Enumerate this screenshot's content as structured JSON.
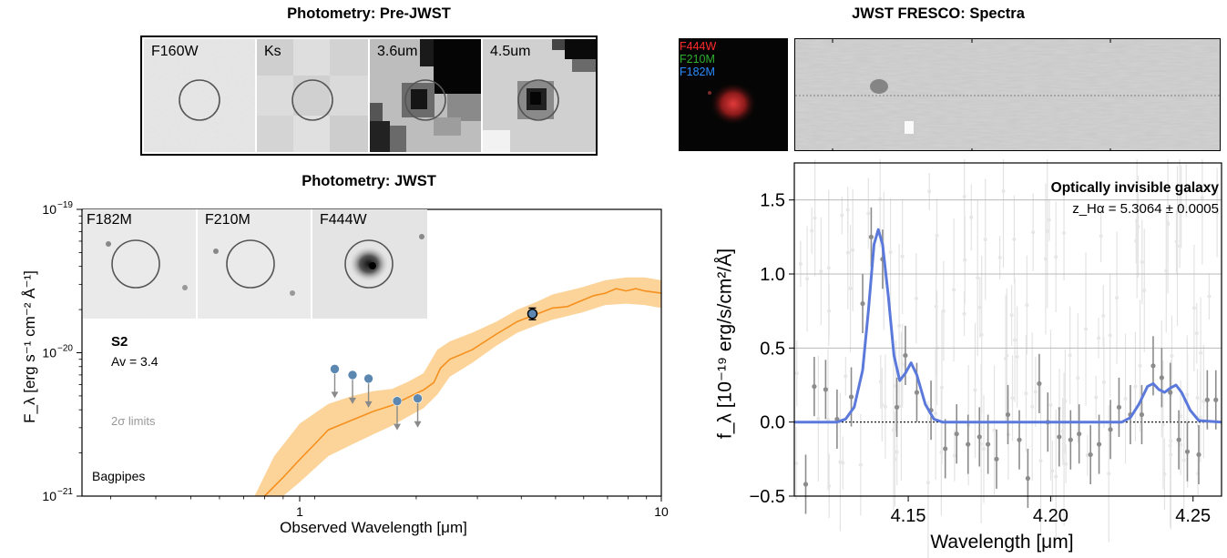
{
  "pre_jwst": {
    "title": "Photometry: Pre-JWST",
    "stamps": [
      {
        "label": "F160W"
      },
      {
        "label": "Ks"
      },
      {
        "label": "3.6um"
      },
      {
        "label": "4.5um"
      }
    ]
  },
  "jwst_phot": {
    "title": "Photometry: JWST",
    "stamps": [
      {
        "label": "F182M"
      },
      {
        "label": "F210M"
      },
      {
        "label": "F444W"
      }
    ]
  },
  "fresco": {
    "title": "JWST FRESCO:  Spectra",
    "rgb_labels": [
      {
        "text": "F444W",
        "color": "#ff2a2a"
      },
      {
        "text": "F210M",
        "color": "#2fae2f"
      },
      {
        "text": "F182M",
        "color": "#2a8cff"
      }
    ]
  },
  "colors": {
    "model_line": "#f5901e",
    "model_band": "#fcd49a",
    "detection_marker": "#5b87b0",
    "limit_arrow": "#8a8a8a",
    "spectrum_fit": "#5b79db",
    "data_points": "#8c8c8c"
  },
  "chart_data": [
    {
      "type": "scatter",
      "title": "Photometry: JWST",
      "xlabel": "Observed Wavelength [μm]",
      "ylabel": "F_λ [erg s⁻¹ cm⁻² Å⁻¹]",
      "xscale": "log",
      "yscale": "log",
      "xlim": [
        0.25,
        10
      ],
      "ylim": [
        1e-21,
        1e-19
      ],
      "x_ticks": [
        {
          "value": 1,
          "label": "1"
        },
        {
          "value": 10,
          "label": "10"
        }
      ],
      "y_ticks": [
        {
          "value": 1e-21,
          "label": "10",
          "exp": "−21"
        },
        {
          "value": 1e-20,
          "label": "10",
          "exp": "−20"
        },
        {
          "value": 1e-19,
          "label": "10",
          "exp": "−19"
        }
      ],
      "annotations": {
        "object": "S2",
        "av": "Av = 3.4",
        "limits": "2σ limits",
        "code": "Bagpipes"
      },
      "upper_limits": [
        {
          "x": 1.25,
          "y": 7.7e-21
        },
        {
          "x": 1.4,
          "y": 7e-21
        },
        {
          "x": 1.55,
          "y": 6.6e-21
        },
        {
          "x": 1.86,
          "y": 4.6e-21
        },
        {
          "x": 2.12,
          "y": 4.8e-21
        }
      ],
      "detection": {
        "x": 4.4,
        "y": 1.87e-20,
        "yerr": [
          1.7e-20,
          2.05e-20
        ]
      },
      "model_median": [
        [
          0.8,
          1e-21
        ],
        [
          0.9,
          1.35e-21
        ],
        [
          1.0,
          1.8e-21
        ],
        [
          1.1,
          2.3e-21
        ],
        [
          1.2,
          2.9e-21
        ],
        [
          1.4,
          3.4e-21
        ],
        [
          1.6,
          3.9e-21
        ],
        [
          1.8,
          4.3e-21
        ],
        [
          2.0,
          4.9e-21
        ],
        [
          2.2,
          5.5e-21
        ],
        [
          2.35,
          6.2e-21
        ],
        [
          2.45,
          7.8e-21
        ],
        [
          2.6,
          9e-21
        ],
        [
          3.0,
          1.05e-20
        ],
        [
          3.5,
          1.35e-20
        ],
        [
          4.0,
          1.65e-20
        ],
        [
          4.5,
          1.85e-20
        ],
        [
          5.0,
          2.05e-20
        ],
        [
          5.5,
          2.1e-20
        ],
        [
          6.0,
          2.3e-20
        ],
        [
          6.5,
          2.5e-20
        ],
        [
          7.0,
          2.6e-20
        ],
        [
          7.5,
          2.8e-20
        ],
        [
          8.0,
          2.7e-20
        ],
        [
          8.5,
          2.8e-20
        ],
        [
          9.0,
          2.7e-20
        ],
        [
          10.0,
          2.6e-20
        ]
      ],
      "model_low": [
        [
          0.9,
          1e-21
        ],
        [
          1.0,
          1.25e-21
        ],
        [
          1.2,
          1.9e-21
        ],
        [
          1.4,
          2.3e-21
        ],
        [
          1.6,
          2.7e-21
        ],
        [
          1.8,
          3.1e-21
        ],
        [
          2.0,
          3.6e-21
        ],
        [
          2.2,
          4.1e-21
        ],
        [
          2.4,
          5.1e-21
        ],
        [
          2.6,
          6.8e-21
        ],
        [
          3.0,
          8.5e-21
        ],
        [
          3.5,
          1.12e-20
        ],
        [
          4.0,
          1.38e-20
        ],
        [
          4.5,
          1.55e-20
        ],
        [
          5.0,
          1.7e-20
        ],
        [
          6.0,
          1.9e-20
        ],
        [
          7.0,
          2.15e-20
        ],
        [
          8.0,
          2.2e-20
        ],
        [
          9.0,
          2.15e-20
        ],
        [
          10.0,
          2.05e-20
        ]
      ],
      "model_high": [
        [
          0.75,
          1e-21
        ],
        [
          0.85,
          1.9e-21
        ],
        [
          1.0,
          3.2e-21
        ],
        [
          1.2,
          4.4e-21
        ],
        [
          1.4,
          5e-21
        ],
        [
          1.6,
          5.4e-21
        ],
        [
          1.8,
          5.6e-21
        ],
        [
          2.0,
          6.3e-21
        ],
        [
          2.2,
          7.2e-21
        ],
        [
          2.4,
          1.05e-20
        ],
        [
          2.6,
          1.2e-20
        ],
        [
          3.0,
          1.38e-20
        ],
        [
          3.5,
          1.65e-20
        ],
        [
          4.0,
          2e-20
        ],
        [
          4.5,
          2.25e-20
        ],
        [
          5.0,
          2.55e-20
        ],
        [
          6.0,
          2.85e-20
        ],
        [
          7.0,
          3.2e-20
        ],
        [
          8.0,
          3.35e-20
        ],
        [
          9.0,
          3.35e-20
        ],
        [
          10.0,
          3.2e-20
        ]
      ]
    },
    {
      "type": "line",
      "xlabel": "Wavelength [μm]",
      "ylabel": "f_λ [10⁻¹⁹ erg/s/cm²/Å]",
      "xlim": [
        4.11,
        4.26
      ],
      "ylim": [
        -0.5,
        1.75
      ],
      "x_ticks": [
        4.15,
        4.2,
        4.25
      ],
      "y_ticks": [
        -0.5,
        0.0,
        0.5,
        1.0,
        1.5
      ],
      "grid": true,
      "annotation_title": "Optically invisible galaxy",
      "annotation_redshift": "z_Hα = 5.3064 ± 0.0005",
      "fit": [
        [
          4.11,
          0.0
        ],
        [
          4.125,
          0.0
        ],
        [
          4.128,
          0.02
        ],
        [
          4.131,
          0.1
        ],
        [
          4.134,
          0.35
        ],
        [
          4.136,
          0.75
        ],
        [
          4.138,
          1.2
        ],
        [
          4.1395,
          1.3
        ],
        [
          4.141,
          1.2
        ],
        [
          4.143,
          0.85
        ],
        [
          4.145,
          0.45
        ],
        [
          4.147,
          0.28
        ],
        [
          4.149,
          0.33
        ],
        [
          4.151,
          0.4
        ],
        [
          4.153,
          0.32
        ],
        [
          4.156,
          0.12
        ],
        [
          4.159,
          0.02
        ],
        [
          4.162,
          0.0
        ],
        [
          4.225,
          0.0
        ],
        [
          4.228,
          0.03
        ],
        [
          4.231,
          0.12
        ],
        [
          4.234,
          0.24
        ],
        [
          4.236,
          0.26
        ],
        [
          4.238,
          0.22
        ],
        [
          4.24,
          0.2
        ],
        [
          4.242,
          0.23
        ],
        [
          4.244,
          0.25
        ],
        [
          4.246,
          0.2
        ],
        [
          4.249,
          0.08
        ],
        [
          4.252,
          0.01
        ],
        [
          4.26,
          0.0
        ]
      ],
      "points": [
        {
          "x": 4.114,
          "y": -0.42,
          "err": 0.2
        },
        {
          "x": 4.117,
          "y": 0.24,
          "err": 0.2
        },
        {
          "x": 4.121,
          "y": 0.22,
          "err": 0.2
        },
        {
          "x": 4.125,
          "y": 0.02,
          "err": 0.2
        },
        {
          "x": 4.13,
          "y": 0.17,
          "err": 0.2
        },
        {
          "x": 4.134,
          "y": 0.8,
          "err": 0.2
        },
        {
          "x": 4.137,
          "y": 1.25,
          "err": 0.2
        },
        {
          "x": 4.141,
          "y": 1.1,
          "err": 0.2
        },
        {
          "x": 4.146,
          "y": 0.1,
          "err": 0.2
        },
        {
          "x": 4.149,
          "y": 0.45,
          "err": 0.2
        },
        {
          "x": 4.153,
          "y": 0.2,
          "err": 0.2
        },
        {
          "x": 4.158,
          "y": 0.08,
          "err": 0.2
        },
        {
          "x": 4.163,
          "y": -0.18,
          "err": 0.2
        },
        {
          "x": 4.167,
          "y": -0.08,
          "err": 0.2
        },
        {
          "x": 4.171,
          "y": -0.15,
          "err": 0.2
        },
        {
          "x": 4.175,
          "y": -0.1,
          "err": 0.2
        },
        {
          "x": 4.178,
          "y": -0.15,
          "err": 0.2
        },
        {
          "x": 4.181,
          "y": -0.25,
          "err": 0.2
        },
        {
          "x": 4.185,
          "y": 0.05,
          "err": 0.2
        },
        {
          "x": 4.189,
          "y": -0.12,
          "err": 0.2
        },
        {
          "x": 4.192,
          "y": -0.38,
          "err": 0.2
        },
        {
          "x": 4.196,
          "y": 0.26,
          "err": 0.2
        },
        {
          "x": 4.199,
          "y": 0.0,
          "err": 0.2
        },
        {
          "x": 4.203,
          "y": -0.1,
          "err": 0.2
        },
        {
          "x": 4.207,
          "y": -0.12,
          "err": 0.2
        },
        {
          "x": 4.21,
          "y": -0.08,
          "err": 0.2
        },
        {
          "x": 4.214,
          "y": -0.22,
          "err": 0.2
        },
        {
          "x": 4.217,
          "y": -0.15,
          "err": 0.2
        },
        {
          "x": 4.221,
          "y": -0.05,
          "err": 0.2
        },
        {
          "x": 4.224,
          "y": 0.1,
          "err": 0.2
        },
        {
          "x": 4.228,
          "y": 0.05,
          "err": 0.2
        },
        {
          "x": 4.232,
          "y": 0.05,
          "err": 0.2
        },
        {
          "x": 4.236,
          "y": 0.38,
          "err": 0.2
        },
        {
          "x": 4.239,
          "y": 0.3,
          "err": 0.2
        },
        {
          "x": 4.242,
          "y": 0.2,
          "err": 0.2
        },
        {
          "x": 4.245,
          "y": -0.12,
          "err": 0.2
        },
        {
          "x": 4.248,
          "y": -0.2,
          "err": 0.2
        },
        {
          "x": 4.252,
          "y": -0.22,
          "err": 0.2
        },
        {
          "x": 4.255,
          "y": 0.15,
          "err": 0.2
        },
        {
          "x": 4.258,
          "y": 0.15,
          "err": 0.2
        }
      ]
    }
  ]
}
